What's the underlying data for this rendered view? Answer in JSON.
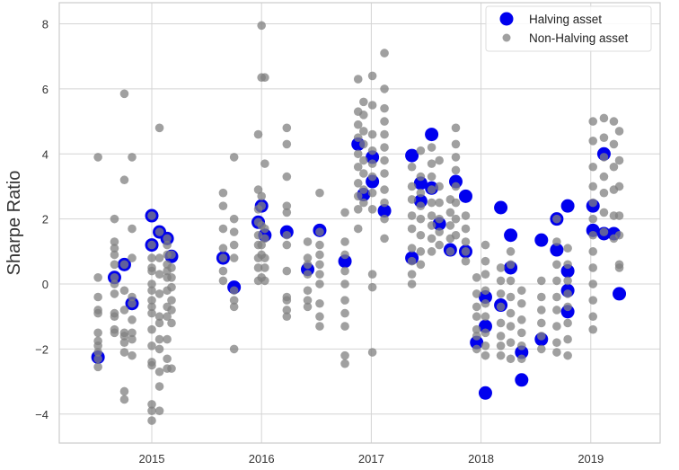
{
  "chart_data": {
    "type": "scatter",
    "title": "",
    "xlabel": "",
    "ylabel": "Sharpe Ratio",
    "xlim": [
      2014.157,
      2019.632
    ],
    "ylim": [
      -4.89,
      8.65
    ],
    "xticks": [
      "2015",
      "2016",
      "2017",
      "2018",
      "2019"
    ],
    "xtick_values": [
      2015,
      2016,
      2017,
      2018,
      2019
    ],
    "yticks": [
      "−4",
      "−2",
      "0",
      "2",
      "4",
      "6",
      "8"
    ],
    "ytick_values": [
      -4,
      -2,
      0,
      2,
      4,
      6,
      8
    ],
    "grid": true,
    "legend_placement": "top-right",
    "series": [
      {
        "name": "Halving asset",
        "color": "#0000ee",
        "points": [
          {
            "x": 2014.51,
            "y": [
              -2.25
            ]
          },
          {
            "x": 2014.66,
            "y": [
              0.2
            ]
          },
          {
            "x": 2014.75,
            "y": [
              0.6
            ]
          },
          {
            "x": 2014.82,
            "y": [
              -0.6
            ]
          },
          {
            "x": 2015.0,
            "y": [
              2.1,
              1.2
            ]
          },
          {
            "x": 2015.07,
            "y": [
              1.6
            ]
          },
          {
            "x": 2015.14,
            "y": [
              1.4
            ]
          },
          {
            "x": 2015.18,
            "y": [
              0.85
            ]
          },
          {
            "x": 2015.65,
            "y": [
              0.8
            ]
          },
          {
            "x": 2015.75,
            "y": [
              -0.1
            ]
          },
          {
            "x": 2015.97,
            "y": [
              1.9
            ]
          },
          {
            "x": 2016.0,
            "y": [
              2.4
            ]
          },
          {
            "x": 2016.03,
            "y": [
              1.5
            ]
          },
          {
            "x": 2016.23,
            "y": [
              1.6
            ]
          },
          {
            "x": 2016.42,
            "y": [
              0.45
            ]
          },
          {
            "x": 2016.53,
            "y": [
              1.65
            ]
          },
          {
            "x": 2016.76,
            "y": [
              0.7
            ]
          },
          {
            "x": 2016.88,
            "y": [
              4.3
            ]
          },
          {
            "x": 2016.93,
            "y": [
              2.75
            ]
          },
          {
            "x": 2017.01,
            "y": [
              3.15,
              3.9
            ]
          },
          {
            "x": 2017.12,
            "y": [
              2.25
            ]
          },
          {
            "x": 2017.37,
            "y": [
              3.95,
              0.8
            ]
          },
          {
            "x": 2017.45,
            "y": [
              3.1,
              2.55
            ]
          },
          {
            "x": 2017.55,
            "y": [
              4.6,
              2.95
            ]
          },
          {
            "x": 2017.62,
            "y": [
              1.85
            ]
          },
          {
            "x": 2017.72,
            "y": [
              1.05
            ]
          },
          {
            "x": 2017.77,
            "y": [
              3.15
            ]
          },
          {
            "x": 2017.86,
            "y": [
              2.7,
              1.0
            ]
          },
          {
            "x": 2017.96,
            "y": [
              -1.8
            ]
          },
          {
            "x": 2018.04,
            "y": [
              -0.4,
              -1.3,
              -3.35
            ]
          },
          {
            "x": 2018.18,
            "y": [
              2.35,
              -0.65
            ]
          },
          {
            "x": 2018.27,
            "y": [
              1.5,
              0.5
            ]
          },
          {
            "x": 2018.37,
            "y": [
              -2.1,
              -2.95
            ]
          },
          {
            "x": 2018.55,
            "y": [
              1.35,
              -1.7
            ]
          },
          {
            "x": 2018.69,
            "y": [
              2.0,
              1.05
            ]
          },
          {
            "x": 2018.79,
            "y": [
              2.4,
              0.4,
              -0.2,
              -0.85
            ]
          },
          {
            "x": 2019.02,
            "y": [
              2.4,
              1.65
            ]
          },
          {
            "x": 2019.12,
            "y": [
              4.0,
              1.55
            ]
          },
          {
            "x": 2019.21,
            "y": [
              1.55
            ]
          },
          {
            "x": 2019.26,
            "y": [
              -0.3
            ]
          }
        ]
      },
      {
        "name": "Non-Halving asset",
        "color": "#808080",
        "points": [
          {
            "x": 2014.51,
            "y": [
              3.9,
              0.2,
              -0.4,
              -0.8,
              -0.9,
              -1.5,
              -1.75,
              -1.9,
              -2.1,
              -2.3,
              -2.55
            ]
          },
          {
            "x": 2014.66,
            "y": [
              2.0,
              1.3,
              1.1,
              0.9,
              0.6,
              0.2,
              0,
              -0.3,
              -0.9,
              -1.0,
              -1.4,
              -1.5
            ]
          },
          {
            "x": 2014.75,
            "y": [
              5.85,
              3.2,
              0.6,
              -0.2,
              -0.8,
              -1.5,
              -1.6,
              -1.8,
              -2.1,
              -3.3,
              -3.55
            ]
          },
          {
            "x": 2014.82,
            "y": [
              3.9,
              1.7,
              0.8,
              -0.4,
              -0.6,
              -1.1,
              -1.5,
              -1.7,
              -2.2
            ]
          },
          {
            "x": 2015.0,
            "y": [
              2.1,
              1.2,
              0.8,
              0.5,
              0.4,
              0,
              -0.2,
              -0.5,
              -0.7,
              -0.9,
              -1.4,
              -1.9,
              -2.4,
              -2.5,
              -3.7,
              -3.9,
              -4.2
            ]
          },
          {
            "x": 2015.07,
            "y": [
              4.8,
              1.6,
              0.8,
              0.3,
              -0.3,
              -1.0,
              -1.2,
              -1.7,
              -2.0,
              -2.7,
              -3.15,
              -3.9
            ]
          },
          {
            "x": 2015.14,
            "y": [
              1.4,
              1.2,
              0.9,
              0.6,
              0.4,
              0.2,
              -0.2,
              -0.7,
              -1.0,
              -1.7,
              -2.3,
              -2.6
            ]
          },
          {
            "x": 2015.18,
            "y": [
              0.9,
              0.5,
              0.2,
              -0.1,
              -0.5,
              -0.8,
              -1.2,
              -2.6
            ]
          },
          {
            "x": 2015.65,
            "y": [
              2.8,
              2.4,
              1.7,
              1.1,
              0.8,
              0.4,
              0.1
            ]
          },
          {
            "x": 2015.75,
            "y": [
              3.9,
              2.0,
              1.6,
              1.2,
              0.8,
              -0.2,
              -0.5,
              -0.7,
              -2.0
            ]
          },
          {
            "x": 2015.97,
            "y": [
              4.6,
              2.9,
              2.3,
              1.9,
              1.5,
              1.2,
              0.8,
              0.5,
              0.1
            ]
          },
          {
            "x": 2016.0,
            "y": [
              7.95,
              6.35,
              2.7,
              2.4,
              1.8,
              1.2,
              0.9,
              0.2
            ]
          },
          {
            "x": 2016.03,
            "y": [
              6.35,
              3.7,
              1.7,
              1.4,
              0.8,
              0.5,
              0.1
            ]
          },
          {
            "x": 2016.23,
            "y": [
              4.8,
              4.3,
              3.3,
              2.4,
              2.2,
              1.5,
              1.2,
              0.4,
              -0.4,
              -0.5,
              -0.8,
              -1.0
            ]
          },
          {
            "x": 2016.42,
            "y": [
              1.3,
              0.8,
              0.6,
              0.3,
              -0.2,
              -0.5,
              -0.7
            ]
          },
          {
            "x": 2016.53,
            "y": [
              2.8,
              1.6,
              1.2,
              0.9,
              0.6,
              0.3,
              0,
              -0.6,
              -1.0,
              -1.3
            ]
          },
          {
            "x": 2016.76,
            "y": [
              2.2,
              1.3,
              0.9,
              0.4,
              0,
              -0.5,
              -0.9,
              -1.3,
              -2.2,
              -2.45
            ]
          },
          {
            "x": 2016.88,
            "y": [
              6.3,
              5.3,
              4.9,
              4.5,
              4.0,
              3.6,
              3.1,
              2.7,
              2.3,
              1.7
            ]
          },
          {
            "x": 2016.93,
            "y": [
              5.6,
              5.2,
              4.7,
              4.3,
              3.8,
              3.4,
              2.9,
              2.5
            ]
          },
          {
            "x": 2017.01,
            "y": [
              6.4,
              5.5,
              4.6,
              4.1,
              3.7,
              3.3,
              2.8,
              2.3,
              0.3,
              -0.1,
              -2.1
            ]
          },
          {
            "x": 2017.12,
            "y": [
              7.1,
              6.0,
              5.4,
              5.0,
              4.6,
              4.2,
              3.8,
              3.4,
              2.9,
              2.5,
              2.0,
              1.4
            ]
          },
          {
            "x": 2017.37,
            "y": [
              3.6,
              3.0,
              2.6,
              2.1,
              1.7,
              1.1,
              0.7,
              0.3,
              0
            ]
          },
          {
            "x": 2017.45,
            "y": [
              4.1,
              3.3,
              2.8,
              2.4,
              2.0,
              1.5,
              1.0,
              0.6
            ]
          },
          {
            "x": 2017.55,
            "y": [
              4.2,
              3.7,
              3.3,
              2.9,
              2.5,
              2.1,
              1.8,
              1.4,
              1.0
            ]
          },
          {
            "x": 2017.62,
            "y": [
              3.8,
              3.0,
              2.5,
              2.0,
              1.6,
              1.2
            ]
          },
          {
            "x": 2017.72,
            "y": [
              2.6,
              2.2,
              1.8,
              1.4,
              1.0
            ]
          },
          {
            "x": 2017.77,
            "y": [
              4.8,
              4.3,
              3.9,
              3.5,
              3.0,
              2.5,
              2.0,
              1.5
            ]
          },
          {
            "x": 2017.86,
            "y": [
              2.1,
              1.7,
              1.3,
              1.0,
              0.7
            ]
          },
          {
            "x": 2017.96,
            "y": [
              0.2,
              -0.3,
              -0.7,
              -1.0,
              -1.4,
              -1.6,
              -2.0
            ]
          },
          {
            "x": 2018.04,
            "y": [
              1.2,
              0.7,
              0.3,
              -0.2,
              -0.6,
              -1.0,
              -1.5,
              -1.9,
              -2.2
            ]
          },
          {
            "x": 2018.18,
            "y": [
              0.5,
              0.1,
              -0.3,
              -0.7,
              -1.2,
              -1.6,
              -1.9,
              -2.2
            ]
          },
          {
            "x": 2018.27,
            "y": [
              1.0,
              0.6,
              0.1,
              -0.4,
              -0.9,
              -1.3,
              -1.8,
              -2.3
            ]
          },
          {
            "x": 2018.37,
            "y": [
              -0.2,
              -0.6,
              -1.1,
              -1.5,
              -1.9,
              -2.3
            ]
          },
          {
            "x": 2018.55,
            "y": [
              0.1,
              -0.4,
              -0.8,
              -1.2,
              -1.6,
              -2.0
            ]
          },
          {
            "x": 2018.69,
            "y": [
              2.0,
              1.3,
              0.6,
              0.1,
              -0.4,
              -0.8,
              -1.3,
              -1.8,
              -2.1
            ]
          },
          {
            "x": 2018.79,
            "y": [
              1.1,
              0.6,
              0.1,
              -0.3,
              -0.7,
              -1.2,
              -1.7,
              -2.2
            ]
          },
          {
            "x": 2019.02,
            "y": [
              5.0,
              4.4,
              3.6,
              3.0,
              2.5,
              2.0,
              1.5,
              1.0,
              0.5,
              0,
              -0.5,
              -1.0,
              -1.4
            ]
          },
          {
            "x": 2019.12,
            "y": [
              5.1,
              4.5,
              3.9,
              3.3,
              2.8,
              2.2,
              1.6
            ]
          },
          {
            "x": 2019.21,
            "y": [
              5.0,
              4.3,
              3.6,
              2.9,
              2.1,
              1.4
            ]
          },
          {
            "x": 2019.26,
            "y": [
              4.7,
              3.8,
              3.0,
              2.1,
              1.5,
              0.6,
              0.5
            ]
          }
        ]
      }
    ]
  }
}
